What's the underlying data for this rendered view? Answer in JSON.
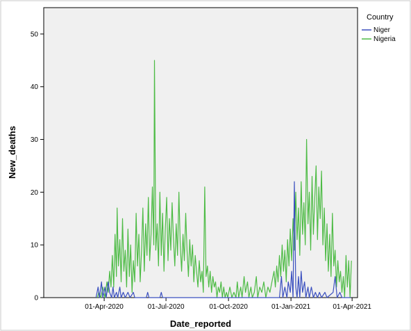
{
  "chart_data": {
    "type": "line",
    "xlabel": "Date_reported",
    "ylabel": "New_deaths",
    "ylim": [
      0,
      55
    ],
    "yticks": [
      0,
      10,
      20,
      30,
      40,
      50
    ],
    "xlim": [
      "2020-01-03",
      "2021-04-09"
    ],
    "xticks": [
      "2020-04-01",
      "2020-07-01",
      "2020-10-01",
      "2021-01-01",
      "2021-04-01"
    ],
    "xtick_labels": [
      "01-Apr-2020",
      "01-Jul-2020",
      "01-Oct-2020",
      "01-Jan-2021",
      "01-Apr-2021"
    ],
    "grid": false,
    "background": "#f0f0f0",
    "legend": {
      "title": "Country",
      "placement": "top-right outside"
    },
    "series": [
      {
        "name": "Niger",
        "color": "#3a4fbf",
        "points": [
          [
            "2020-03-20",
            0
          ],
          [
            "2020-03-23",
            2
          ],
          [
            "2020-03-25",
            0
          ],
          [
            "2020-03-28",
            3
          ],
          [
            "2020-03-30",
            0
          ],
          [
            "2020-04-02",
            2
          ],
          [
            "2020-04-04",
            0
          ],
          [
            "2020-04-07",
            3
          ],
          [
            "2020-04-09",
            1
          ],
          [
            "2020-04-12",
            0
          ],
          [
            "2020-04-14",
            2
          ],
          [
            "2020-04-16",
            0
          ],
          [
            "2020-04-19",
            1
          ],
          [
            "2020-04-21",
            0
          ],
          [
            "2020-04-24",
            2
          ],
          [
            "2020-04-26",
            0
          ],
          [
            "2020-04-29",
            1
          ],
          [
            "2020-05-02",
            0
          ],
          [
            "2020-05-06",
            1
          ],
          [
            "2020-05-09",
            0
          ],
          [
            "2020-05-14",
            1
          ],
          [
            "2020-05-16",
            0
          ],
          [
            "2020-06-02",
            0
          ],
          [
            "2020-06-04",
            1
          ],
          [
            "2020-06-06",
            0
          ],
          [
            "2020-06-22",
            0
          ],
          [
            "2020-06-24",
            1
          ],
          [
            "2020-06-26",
            0
          ],
          [
            "2020-12-15",
            0
          ],
          [
            "2020-12-18",
            4
          ],
          [
            "2020-12-20",
            0
          ],
          [
            "2020-12-23",
            2
          ],
          [
            "2020-12-26",
            0
          ],
          [
            "2020-12-28",
            3
          ],
          [
            "2020-12-31",
            1
          ],
          [
            "2021-01-02",
            5
          ],
          [
            "2021-01-04",
            0
          ],
          [
            "2021-01-06",
            22
          ],
          [
            "2021-01-08",
            2
          ],
          [
            "2021-01-10",
            0
          ],
          [
            "2021-01-12",
            4
          ],
          [
            "2021-01-14",
            0
          ],
          [
            "2021-01-16",
            5
          ],
          [
            "2021-01-18",
            1
          ],
          [
            "2021-01-21",
            3
          ],
          [
            "2021-01-23",
            0
          ],
          [
            "2021-01-26",
            2
          ],
          [
            "2021-01-28",
            0
          ],
          [
            "2021-01-31",
            2
          ],
          [
            "2021-02-03",
            0
          ],
          [
            "2021-02-06",
            1
          ],
          [
            "2021-02-09",
            0
          ],
          [
            "2021-02-12",
            1
          ],
          [
            "2021-02-15",
            0
          ],
          [
            "2021-02-20",
            1
          ],
          [
            "2021-02-23",
            0
          ],
          [
            "2021-03-04",
            1
          ],
          [
            "2021-03-07",
            4
          ],
          [
            "2021-03-10",
            0
          ],
          [
            "2021-03-14",
            1
          ],
          [
            "2021-03-17",
            0
          ],
          [
            "2021-03-30",
            0
          ]
        ]
      },
      {
        "name": "Nigeria",
        "color": "#4dbb45",
        "points": [
          [
            "2020-03-22",
            0
          ],
          [
            "2020-03-24",
            1
          ],
          [
            "2020-03-27",
            0
          ],
          [
            "2020-03-30",
            2
          ],
          [
            "2020-04-02",
            0
          ],
          [
            "2020-04-05",
            3
          ],
          [
            "2020-04-07",
            1
          ],
          [
            "2020-04-09",
            5
          ],
          [
            "2020-04-11",
            2
          ],
          [
            "2020-04-13",
            8
          ],
          [
            "2020-04-15",
            2
          ],
          [
            "2020-04-17",
            12
          ],
          [
            "2020-04-19",
            4
          ],
          [
            "2020-04-20",
            17
          ],
          [
            "2020-04-22",
            6
          ],
          [
            "2020-04-24",
            11
          ],
          [
            "2020-04-26",
            3
          ],
          [
            "2020-04-28",
            15
          ],
          [
            "2020-04-30",
            5
          ],
          [
            "2020-05-02",
            9
          ],
          [
            "2020-05-04",
            2
          ],
          [
            "2020-05-06",
            13
          ],
          [
            "2020-05-08",
            4
          ],
          [
            "2020-05-10",
            10
          ],
          [
            "2020-05-12",
            1
          ],
          [
            "2020-05-14",
            7
          ],
          [
            "2020-05-16",
            3
          ],
          [
            "2020-05-18",
            16
          ],
          [
            "2020-05-20",
            6
          ],
          [
            "2020-05-22",
            12
          ],
          [
            "2020-05-24",
            3
          ],
          [
            "2020-05-26",
            9
          ],
          [
            "2020-05-28",
            17
          ],
          [
            "2020-05-30",
            5
          ],
          [
            "2020-06-01",
            14
          ],
          [
            "2020-06-03",
            8
          ],
          [
            "2020-06-05",
            19
          ],
          [
            "2020-06-07",
            7
          ],
          [
            "2020-06-09",
            12
          ],
          [
            "2020-06-11",
            21
          ],
          [
            "2020-06-13",
            10
          ],
          [
            "2020-06-14",
            45
          ],
          [
            "2020-06-16",
            9
          ],
          [
            "2020-06-18",
            14
          ],
          [
            "2020-06-20",
            6
          ],
          [
            "2020-06-22",
            20
          ],
          [
            "2020-06-24",
            8
          ],
          [
            "2020-06-26",
            16
          ],
          [
            "2020-06-28",
            5
          ],
          [
            "2020-06-30",
            13
          ],
          [
            "2020-07-02",
            19
          ],
          [
            "2020-07-04",
            7
          ],
          [
            "2020-07-06",
            15
          ],
          [
            "2020-07-08",
            9
          ],
          [
            "2020-07-10",
            18
          ],
          [
            "2020-07-12",
            11
          ],
          [
            "2020-07-14",
            6
          ],
          [
            "2020-07-16",
            14
          ],
          [
            "2020-07-18",
            8
          ],
          [
            "2020-07-20",
            20
          ],
          [
            "2020-07-22",
            10
          ],
          [
            "2020-07-24",
            5
          ],
          [
            "2020-07-26",
            12
          ],
          [
            "2020-07-28",
            7
          ],
          [
            "2020-07-30",
            16
          ],
          [
            "2020-08-01",
            9
          ],
          [
            "2020-08-03",
            4
          ],
          [
            "2020-08-05",
            11
          ],
          [
            "2020-08-07",
            6
          ],
          [
            "2020-08-09",
            10
          ],
          [
            "2020-08-11",
            3
          ],
          [
            "2020-08-13",
            8
          ],
          [
            "2020-08-15",
            5
          ],
          [
            "2020-08-17",
            2
          ],
          [
            "2020-08-19",
            7
          ],
          [
            "2020-08-21",
            3
          ],
          [
            "2020-08-23",
            5
          ],
          [
            "2020-08-25",
            1
          ],
          [
            "2020-08-27",
            21
          ],
          [
            "2020-08-29",
            4
          ],
          [
            "2020-08-31",
            6
          ],
          [
            "2020-09-02",
            2
          ],
          [
            "2020-09-04",
            5
          ],
          [
            "2020-09-06",
            1
          ],
          [
            "2020-09-08",
            4
          ],
          [
            "2020-09-10",
            2
          ],
          [
            "2020-09-12",
            3
          ],
          [
            "2020-09-14",
            0
          ],
          [
            "2020-09-16",
            2
          ],
          [
            "2020-09-18",
            1
          ],
          [
            "2020-09-20",
            3
          ],
          [
            "2020-09-22",
            0
          ],
          [
            "2020-09-24",
            2
          ],
          [
            "2020-09-26",
            0
          ],
          [
            "2020-09-28",
            1
          ],
          [
            "2020-09-30",
            0
          ],
          [
            "2020-10-03",
            2
          ],
          [
            "2020-10-06",
            0
          ],
          [
            "2020-10-09",
            1
          ],
          [
            "2020-10-12",
            0
          ],
          [
            "2020-10-14",
            3
          ],
          [
            "2020-10-16",
            0
          ],
          [
            "2020-10-19",
            2
          ],
          [
            "2020-10-21",
            0
          ],
          [
            "2020-10-24",
            4
          ],
          [
            "2020-10-26",
            1
          ],
          [
            "2020-10-29",
            3
          ],
          [
            "2020-10-31",
            0
          ],
          [
            "2020-11-03",
            2
          ],
          [
            "2020-11-05",
            0
          ],
          [
            "2020-11-08",
            1
          ],
          [
            "2020-11-11",
            4
          ],
          [
            "2020-11-13",
            0
          ],
          [
            "2020-11-16",
            2
          ],
          [
            "2020-11-19",
            1
          ],
          [
            "2020-11-22",
            3
          ],
          [
            "2020-11-25",
            0
          ],
          [
            "2020-11-28",
            2
          ],
          [
            "2020-12-01",
            1
          ],
          [
            "2020-12-04",
            3
          ],
          [
            "2020-12-07",
            5
          ],
          [
            "2020-12-09",
            2
          ],
          [
            "2020-12-11",
            6
          ],
          [
            "2020-12-13",
            3
          ],
          [
            "2020-12-15",
            8
          ],
          [
            "2020-12-17",
            4
          ],
          [
            "2020-12-19",
            10
          ],
          [
            "2020-12-21",
            5
          ],
          [
            "2020-12-23",
            9
          ],
          [
            "2020-12-25",
            3
          ],
          [
            "2020-12-27",
            11
          ],
          [
            "2020-12-29",
            6
          ],
          [
            "2020-12-31",
            13
          ],
          [
            "2021-01-02",
            7
          ],
          [
            "2021-01-04",
            15
          ],
          [
            "2021-01-06",
            9
          ],
          [
            "2021-01-08",
            20
          ],
          [
            "2021-01-10",
            11
          ],
          [
            "2021-01-12",
            17
          ],
          [
            "2021-01-14",
            8
          ],
          [
            "2021-01-16",
            22
          ],
          [
            "2021-01-18",
            12
          ],
          [
            "2021-01-20",
            18
          ],
          [
            "2021-01-22",
            10
          ],
          [
            "2021-01-24",
            30
          ],
          [
            "2021-01-26",
            14
          ],
          [
            "2021-01-28",
            20
          ],
          [
            "2021-01-30",
            9
          ],
          [
            "2021-02-01",
            23
          ],
          [
            "2021-02-03",
            12
          ],
          [
            "2021-02-05",
            19
          ],
          [
            "2021-02-07",
            25
          ],
          [
            "2021-02-09",
            11
          ],
          [
            "2021-02-11",
            21
          ],
          [
            "2021-02-13",
            15
          ],
          [
            "2021-02-15",
            24
          ],
          [
            "2021-02-17",
            10
          ],
          [
            "2021-02-19",
            17
          ],
          [
            "2021-02-21",
            7
          ],
          [
            "2021-02-23",
            14
          ],
          [
            "2021-02-25",
            5
          ],
          [
            "2021-02-27",
            12
          ],
          [
            "2021-03-01",
            4
          ],
          [
            "2021-03-03",
            16
          ],
          [
            "2021-03-05",
            6
          ],
          [
            "2021-03-07",
            9
          ],
          [
            "2021-03-09",
            2
          ],
          [
            "2021-03-11",
            7
          ],
          [
            "2021-03-13",
            3
          ],
          [
            "2021-03-15",
            5
          ],
          [
            "2021-03-17",
            1
          ],
          [
            "2021-03-19",
            4
          ],
          [
            "2021-03-21",
            0
          ],
          [
            "2021-03-23",
            8
          ],
          [
            "2021-03-25",
            2
          ],
          [
            "2021-03-27",
            7
          ],
          [
            "2021-03-29",
            0
          ],
          [
            "2021-03-31",
            7
          ]
        ]
      }
    ]
  }
}
